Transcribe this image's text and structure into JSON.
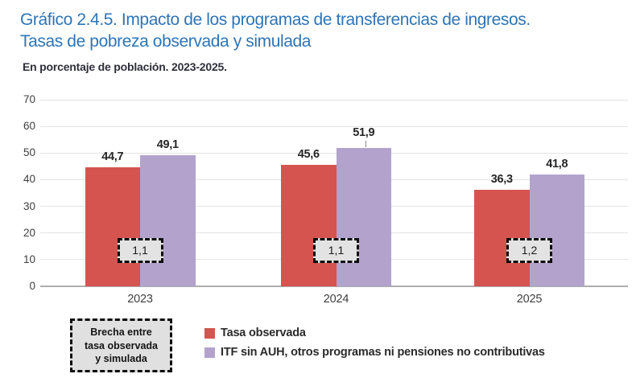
{
  "header": {
    "title_lines": [
      "Gráfico 2.4.5. Impacto de los programas de transferencias de ingresos.",
      "Tasas de pobreza observada y simulada"
    ],
    "subtitle": "En porcentaje de población. 2023-2025."
  },
  "legend": {
    "gap_box_lines": [
      "Brecha entre",
      "tasa observada",
      "y simulada"
    ]
  },
  "chart_data": {
    "type": "bar",
    "title": "Gráfico 2.4.5. Impacto de los programas de transferencias de ingresos. Tasas de pobreza observada y simulada",
    "subtitle": "En porcentaje de población. 2023-2025.",
    "categories": [
      "2023",
      "2024",
      "2025"
    ],
    "series": [
      {
        "name": "Tasa observada",
        "color": "#D5544F",
        "values": [
          44.7,
          45.6,
          36.3
        ],
        "value_labels": [
          "44,7",
          "45,6",
          "36,3"
        ]
      },
      {
        "name": "ITF sin AUH, otros programas ni pensiones no contributivas",
        "color": "#B2A2CC",
        "values": [
          49.1,
          51.9,
          41.8
        ],
        "value_labels": [
          "49,1",
          "51,9",
          "41,8"
        ]
      }
    ],
    "gap_labels": [
      "1,1",
      "1,1",
      "1,2"
    ],
    "gap_legend": "Brecha entre tasa observada y simulada",
    "xlabel": "",
    "ylabel": "",
    "ylim": [
      0,
      70
    ],
    "yticks": [
      0,
      10,
      20,
      30,
      40,
      50,
      60,
      70
    ],
    "grid": true,
    "legend_position": "bottom",
    "label_leader": {
      "series_index": 1,
      "value_index": 1
    },
    "colors": {
      "grid": "#E4E4E4",
      "baseline": "#ADADAD",
      "title": "#2E75B6",
      "gap_box_fill": "#E3E3E3"
    }
  }
}
